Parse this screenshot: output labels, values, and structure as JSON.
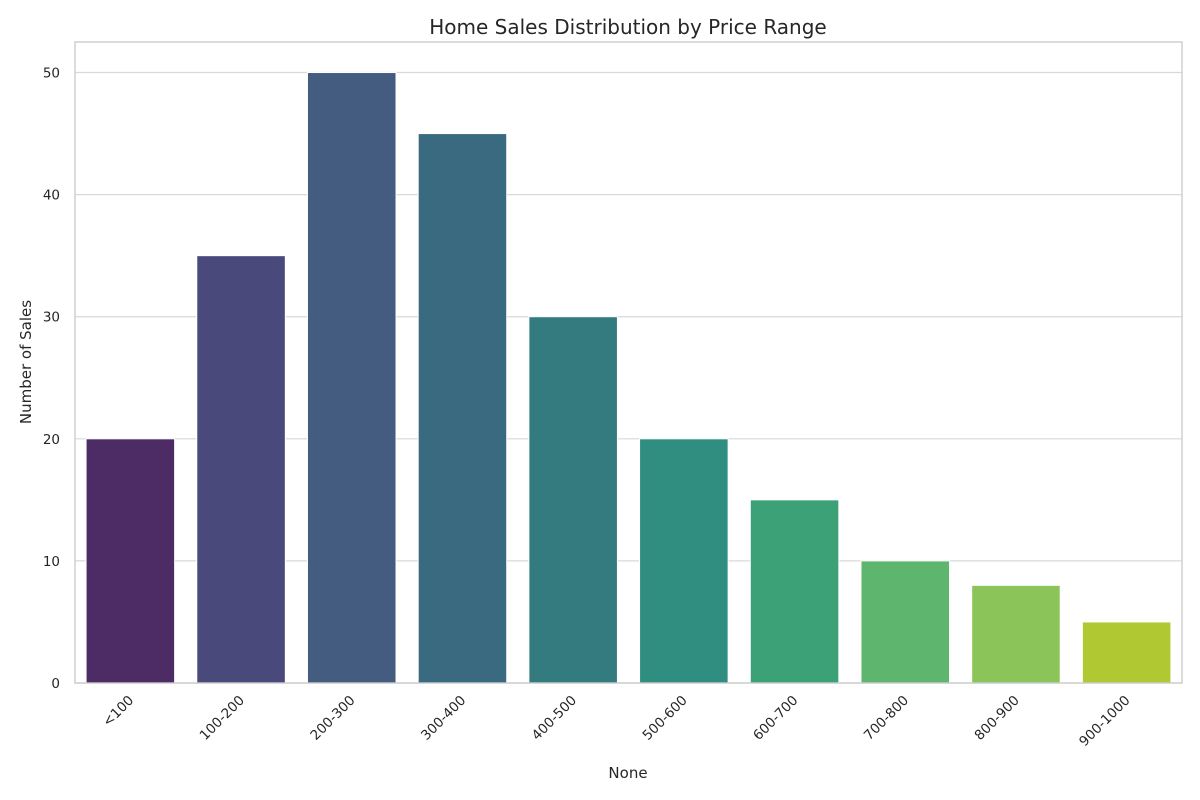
{
  "chart_data": {
    "type": "bar",
    "title": "Home Sales Distribution by Price Range",
    "xlabel": "None",
    "ylabel": "Number of Sales",
    "categories": [
      "<100",
      "100-200",
      "200-300",
      "300-400",
      "400-500",
      "500-600",
      "600-700",
      "700-800",
      "800-900",
      "900-1000"
    ],
    "values": [
      20,
      35,
      50,
      45,
      30,
      20,
      15,
      10,
      8,
      5
    ],
    "ylim": [
      0,
      52.5
    ],
    "yticks": [
      0,
      10,
      20,
      30,
      40,
      50
    ],
    "grid": "horizontal",
    "legend": "none",
    "colors": [
      "#4d2c66",
      "#4a497c",
      "#445c80",
      "#3a6a80",
      "#347b80",
      "#2f8e7f",
      "#3ca176",
      "#5db56e",
      "#8bc55a",
      "#b0c933"
    ]
  }
}
